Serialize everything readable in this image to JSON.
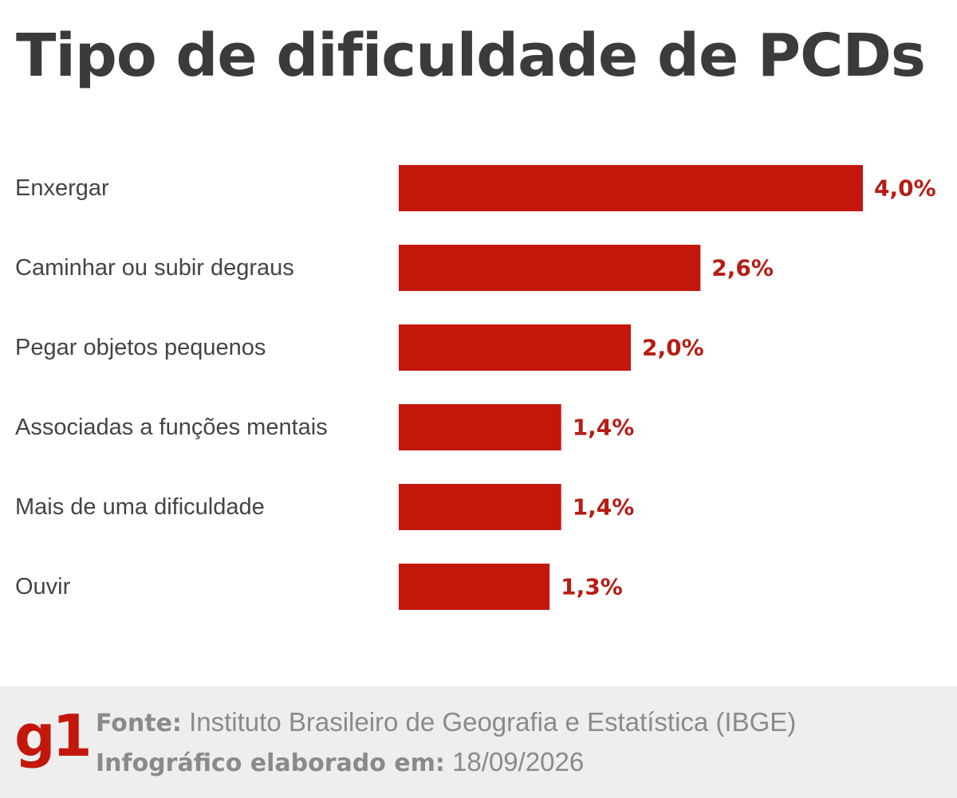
{
  "header": {
    "title": "Tipo de dificuldade de PCDs"
  },
  "chart_data": {
    "type": "bar",
    "orientation": "horizontal",
    "categories": [
      "Enxergar",
      "Caminhar ou subir degraus",
      "Pegar objetos pequenos",
      "Associadas a funções mentais",
      "Mais de uma dificuldade",
      "Ouvir"
    ],
    "values": [
      4.0,
      2.6,
      2.0,
      1.4,
      1.4,
      1.3
    ],
    "value_labels": [
      "4,0%",
      "2,6%",
      "2,0%",
      "1,4%",
      "1,4%",
      "1,3%"
    ],
    "unit": "%",
    "title": "Tipo de dificuldade de PCDs",
    "xlabel": "",
    "ylabel": "",
    "xlim": [
      0,
      4.0
    ],
    "grid": false,
    "legend": "none",
    "bar_color": "#c4170c",
    "label_color": "#b71c13"
  },
  "footer": {
    "logo": "g1",
    "source_label": "Fonte:",
    "source_value": "Instituto Brasileiro de Geografia e Estatística (IBGE)",
    "date_label": "Infográfico elaborado em:",
    "date_value": "18/09/2026",
    "logo_color": "#c4170c"
  }
}
